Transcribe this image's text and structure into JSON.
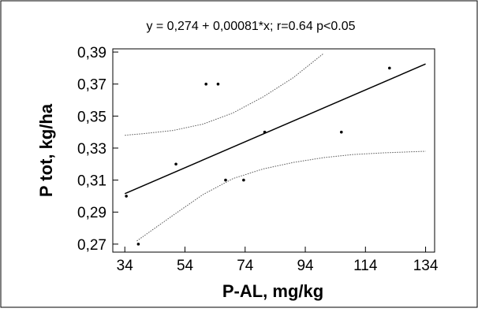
{
  "chart_data": {
    "type": "scatter",
    "title": "y = 0,274 + 0,00081*x;  r=0.64  p<0.05",
    "xlabel": "P-AL, mg/kg",
    "ylabel": "P tot, kg/ha",
    "xlim": [
      30,
      137
    ],
    "ylim": [
      0.265,
      0.392
    ],
    "x_ticks": [
      34,
      54,
      74,
      94,
      114,
      134
    ],
    "x_tick_labels": [
      "34",
      "54",
      "74",
      "94",
      "114",
      "134"
    ],
    "y_ticks": [
      0.27,
      0.29,
      0.31,
      0.33,
      0.35,
      0.37,
      0.39
    ],
    "y_tick_labels": [
      "0,27",
      "0,29",
      "0,31",
      "0,33",
      "0,35",
      "0,37",
      "0,39"
    ],
    "grid": false,
    "legend": "none",
    "points": [
      {
        "x": 34.5,
        "y": 0.3
      },
      {
        "x": 38.5,
        "y": 0.27
      },
      {
        "x": 51,
        "y": 0.32
      },
      {
        "x": 61,
        "y": 0.37
      },
      {
        "x": 65,
        "y": 0.37
      },
      {
        "x": 67.5,
        "y": 0.31
      },
      {
        "x": 73.5,
        "y": 0.31
      },
      {
        "x": 80.5,
        "y": 0.34
      },
      {
        "x": 106,
        "y": 0.34
      },
      {
        "x": 122,
        "y": 0.38
      }
    ],
    "regression": {
      "intercept": 0.274,
      "slope": 0.00081,
      "x_range": [
        34,
        134
      ]
    },
    "confidence_band": {
      "upper": [
        [
          34,
          0.338
        ],
        [
          40,
          0.339
        ],
        [
          50,
          0.341
        ],
        [
          60,
          0.345
        ],
        [
          70,
          0.352
        ],
        [
          80,
          0.362
        ],
        [
          90,
          0.374
        ],
        [
          100,
          0.389
        ]
      ],
      "lower": [
        [
          38,
          0.272
        ],
        [
          50,
          0.288
        ],
        [
          60,
          0.301
        ],
        [
          70,
          0.311
        ],
        [
          80,
          0.317
        ],
        [
          90,
          0.321
        ],
        [
          100,
          0.324
        ],
        [
          110,
          0.326
        ],
        [
          120,
          0.327
        ],
        [
          134,
          0.328
        ]
      ]
    },
    "colors": {
      "points": "#000000",
      "line": "#000000",
      "band": "#555555"
    }
  }
}
